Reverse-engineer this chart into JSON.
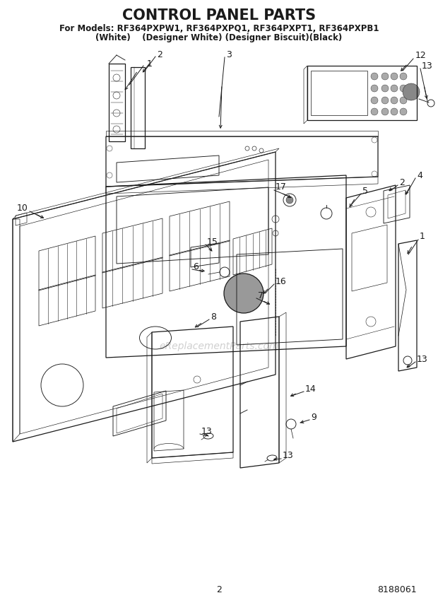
{
  "title": "CONTROL PANEL PARTS",
  "subtitle1": "For Models: RF364PXPW1, RF364PXPQ1, RF364PXPT1, RF364PXPB1",
  "subtitle2": "(White)    (Designer White) (Designer Biscuit)(Black)",
  "page_number": "2",
  "doc_number": "8188061",
  "watermark": "eReplacementParts.com",
  "bg": "#ffffff",
  "lc": "#1a1a1a",
  "wm_color": "#c8c8c8",
  "title_fs": 15,
  "sub_fs": 8.5,
  "label_fs": 9,
  "foot_fs": 9
}
